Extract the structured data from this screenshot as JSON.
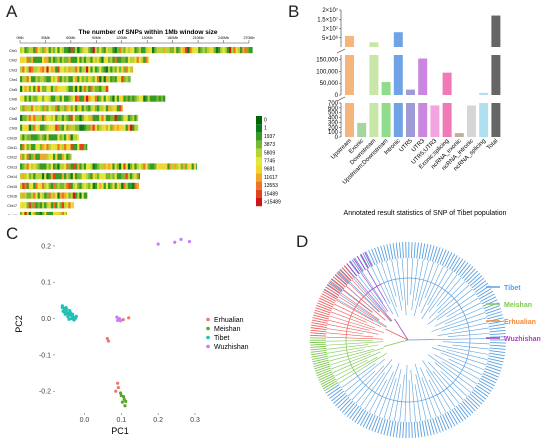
{
  "panel_labels": {
    "a": "A",
    "b": "B",
    "c": "C",
    "d": "D"
  },
  "panelA": {
    "title": "The number of SNPs within 1Mb window size",
    "x_ticks": [
      "0Mb",
      "30Mb",
      "60Mb",
      "90Mb",
      "120Mb",
      "150Mb",
      "180Mb",
      "210Mb",
      "240Mb",
      "270Mb"
    ],
    "chromosomes": [
      {
        "name": "Chr1",
        "length_mb": 274
      },
      {
        "name": "Chr2",
        "length_mb": 152
      },
      {
        "name": "Chr3",
        "length_mb": 133
      },
      {
        "name": "Chr4",
        "length_mb": 130
      },
      {
        "name": "Chr5",
        "length_mb": 104
      },
      {
        "name": "Chr6",
        "length_mb": 171
      },
      {
        "name": "Chr7",
        "length_mb": 121
      },
      {
        "name": "Chr8",
        "length_mb": 139
      },
      {
        "name": "Chr9",
        "length_mb": 139
      },
      {
        "name": "Chr10",
        "length_mb": 69
      },
      {
        "name": "Chr11",
        "length_mb": 79
      },
      {
        "name": "Chr12",
        "length_mb": 61
      },
      {
        "name": "Chr13",
        "length_mb": 208
      },
      {
        "name": "Chr14",
        "length_mb": 141
      },
      {
        "name": "Chr15",
        "length_mb": 140
      },
      {
        "name": "Chr16",
        "length_mb": 79
      },
      {
        "name": "Chr17",
        "length_mb": 63
      },
      {
        "name": "Chr18",
        "length_mb": 55
      }
    ],
    "legend_values": [
      "0",
      "1",
      "1937",
      "3873",
      "5809",
      "7745",
      "9681",
      "11617",
      "13553",
      "15489",
      ">15489"
    ],
    "legend_colors": [
      "#006400",
      "#0b7a1a",
      "#3a9a26",
      "#7ab82f",
      "#b8d433",
      "#e4e63a",
      "#f0d62e",
      "#f2a82a",
      "#ee7526",
      "#e2421f",
      "#d01616"
    ]
  },
  "chart_data": [
    {
      "type": "bar",
      "xlabel": "Annotated result statistics of SNP of Tibet population",
      "ylabel": "",
      "categories": [
        "Upstream",
        "Exonic",
        "Downstream",
        "Upstream;Downstream",
        "Intronic",
        "UTR5",
        "UTR3",
        "UTR5;UTR3",
        "Exonic;splicing",
        "ncRNA_exonic",
        "ncRNA_intronic",
        "ncRNA_splicing",
        "Total"
      ],
      "values": [
        6000000,
        290,
        2500000,
        55000,
        8000000,
        23000,
        155000,
        650,
        95000,
        80,
        650,
        9000,
        17000000
      ],
      "colors": [
        "#f7b57e",
        "#a7d5a0",
        "#c8e6a6",
        "#8fdc8a",
        "#6fa3e6",
        "#9e9bd6",
        "#c987e0",
        "#f5a3e0",
        "#f07ab8",
        "#bfaf9e",
        "#d6d6d6",
        "#b0e0f0",
        "#666666"
      ],
      "y_ticks_bottom": [
        "0",
        "100",
        "200",
        "300",
        "400",
        "500",
        "600",
        "700"
      ],
      "y_ticks_middle": [
        "0",
        "50,000",
        "100,000",
        "150,000"
      ],
      "y_ticks_top": [
        "5×10⁶",
        "1×10⁷",
        "1.5×10⁷",
        "2×10⁷"
      ]
    },
    {
      "type": "scatter",
      "xlabel": "PC1",
      "ylabel": "PC2",
      "xlim": [
        -0.08,
        0.3
      ],
      "ylim": [
        -0.26,
        0.23
      ],
      "x_ticks": [
        "0.0",
        "0.1",
        "0.2",
        "0.3"
      ],
      "y_ticks": [
        "0.2",
        "0.1",
        "0.0",
        "-0.1",
        "-0.2"
      ],
      "legend_position": "right",
      "series": [
        {
          "name": "Erhualian",
          "color": "#f0766d",
          "points": [
            [
              0.105,
              -0.003
            ],
            [
              0.062,
              -0.055
            ],
            [
              0.065,
              -0.062
            ],
            [
              0.09,
              -0.178
            ],
            [
              0.092,
              -0.19
            ],
            [
              0.085,
              -0.2
            ],
            [
              0.12,
              0.002
            ]
          ]
        },
        {
          "name": "Meishan",
          "color": "#5aa627",
          "points": [
            [
              0.098,
              -0.205
            ],
            [
              0.1,
              -0.212
            ],
            [
              0.108,
              -0.222
            ],
            [
              0.112,
              -0.228
            ],
            [
              0.103,
              -0.23
            ],
            [
              0.11,
              -0.24
            ],
            [
              0.106,
              -0.215
            ]
          ]
        },
        {
          "name": "Tibet",
          "color": "#1ec1b2",
          "points": [
            [
              -0.06,
              0.035
            ],
            [
              -0.055,
              0.028
            ],
            [
              -0.05,
              0.02
            ],
            [
              -0.045,
              0.015
            ],
            [
              -0.04,
              0.01
            ],
            [
              -0.035,
              0.008
            ],
            [
              -0.03,
              0.004
            ],
            [
              -0.025,
              0.0
            ],
            [
              -0.04,
              0.022
            ],
            [
              -0.05,
              0.03
            ],
            [
              -0.045,
              0.005
            ],
            [
              -0.035,
              0.0
            ],
            [
              -0.028,
              -0.004
            ],
            [
              -0.042,
              -0.002
            ],
            [
              -0.058,
              0.02
            ],
            [
              -0.052,
              0.012
            ],
            [
              -0.038,
              0.016
            ],
            [
              -0.048,
              0.025
            ],
            [
              -0.032,
              0.012
            ],
            [
              -0.022,
              0.006
            ],
            [
              -0.06,
              0.03
            ],
            [
              -0.055,
              0.018
            ],
            [
              -0.044,
              0.009
            ],
            [
              -0.03,
              -0.002
            ]
          ]
        },
        {
          "name": "Wuzhishan",
          "color": "#c77cff",
          "points": [
            [
              0.2,
              0.205
            ],
            [
              0.245,
              0.21
            ],
            [
              0.262,
              0.218
            ],
            [
              0.285,
              0.212
            ],
            [
              0.09,
              -0.005
            ],
            [
              0.095,
              0.0
            ],
            [
              0.098,
              -0.006
            ],
            [
              0.088,
              0.004
            ]
          ]
        }
      ]
    }
  ],
  "panelD": {
    "legend": [
      {
        "name": "Tibet",
        "color": "#5aa0e0"
      },
      {
        "name": "Meishan",
        "color": "#7ec850"
      },
      {
        "name": "Erhualian",
        "color": "#f08a3c"
      },
      {
        "name": "Wuzhishan",
        "color": "#b040c8"
      }
    ]
  }
}
